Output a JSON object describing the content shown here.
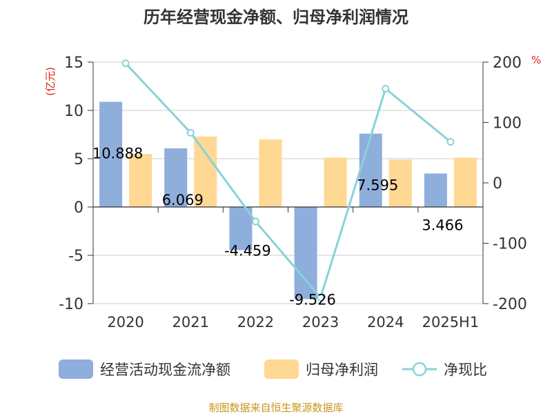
{
  "chart_data": {
    "type": "bar",
    "title": "历年经营现金净额、归母净利润情况",
    "categories": [
      "2020",
      "2021",
      "2022",
      "2023",
      "2024",
      "2025H1"
    ],
    "left_unit": "(亿元)",
    "right_unit": "%",
    "left_ylim": [
      -10,
      15
    ],
    "left_ticks": [
      15,
      10,
      5,
      0,
      -5,
      -10
    ],
    "right_ylim": [
      -200,
      200
    ],
    "right_ticks": [
      200,
      100,
      0,
      -100,
      -200
    ],
    "series": [
      {
        "name": "经营活动现金流净额",
        "type": "bar",
        "axis": "left",
        "color": "#8eaedc",
        "values": [
          10.888,
          6.069,
          -4.459,
          -9.526,
          7.595,
          3.466
        ],
        "labels": [
          "10.888",
          "6.069",
          "-4.459",
          "-9.526",
          "7.595",
          "3.466"
        ]
      },
      {
        "name": "归母净利润",
        "type": "bar",
        "axis": "left",
        "color": "#ffd894",
        "values": [
          5.5,
          7.3,
          7.0,
          5.1,
          4.9,
          5.1
        ]
      },
      {
        "name": "净现比",
        "type": "line",
        "axis": "right",
        "color": "#88d2d8",
        "values": [
          198,
          83,
          -64,
          -190,
          156,
          68
        ]
      }
    ],
    "grid": true,
    "legend_position": "bottom"
  },
  "source": "制图数据来自恒生聚源数据库"
}
